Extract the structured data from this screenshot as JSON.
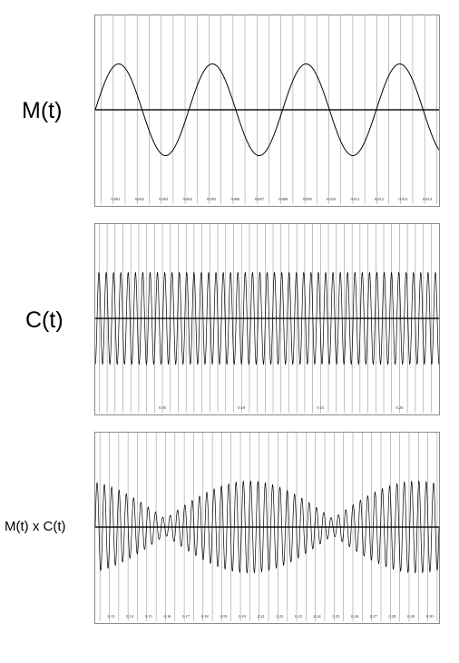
{
  "chart_data": [
    {
      "type": "line",
      "row_label": "M(t)",
      "tick_labels": [
        "0.001",
        "0.002",
        "0.003",
        "0.004",
        "0.005",
        "0.006",
        "0.007",
        "0.008",
        "0.009",
        "0.010",
        "0.011",
        "0.012",
        "0.013",
        "0.014"
      ],
      "xlim": [
        0,
        0.0145
      ],
      "ylim": [
        -1.25,
        1.25
      ],
      "gridlines_per_tick": 2,
      "series": [
        {
          "amplitude": 1.0,
          "cycles": 3.67,
          "phase_deg": 0,
          "envelope_cycles": 0
        }
      ]
    },
    {
      "type": "line",
      "row_label": "C(t)",
      "tick_labels": [
        "0.05",
        "0.10",
        "0.15",
        "0.20"
      ],
      "xlim": [
        0,
        0.235
      ],
      "ylim": [
        -1.25,
        1.25
      ],
      "gridlines_per_tick": 10,
      "series": [
        {
          "amplitude": 1.0,
          "cycles": 47,
          "phase_deg": 270,
          "envelope_cycles": 0
        }
      ]
    },
    {
      "type": "line",
      "row_label": "M(t) x C(t)",
      "tick_labels": [
        "0.13",
        "0.14",
        "0.15",
        "0.16",
        "0.17",
        "0.18",
        "0.19",
        "0.10",
        "0.21",
        "0.22",
        "0.23",
        "0.24",
        "0.25",
        "0.26",
        "0.27",
        "0.28",
        "0.29",
        "0.30"
      ],
      "xlim": [
        0.12,
        0.305
      ],
      "ylim": [
        -1.25,
        1.25
      ],
      "gridlines_per_tick": 2,
      "series": [
        {
          "amplitude": 1.0,
          "cycles": 47,
          "phase_deg": 0,
          "envelope_cycles": 2.05,
          "envelope_phase_deg": 15
        }
      ]
    }
  ],
  "style": {
    "grid_color": "#9a9a9a",
    "axis_color": "#000000",
    "wave_color": "#000000",
    "frame_color": "#8c8c8c"
  }
}
